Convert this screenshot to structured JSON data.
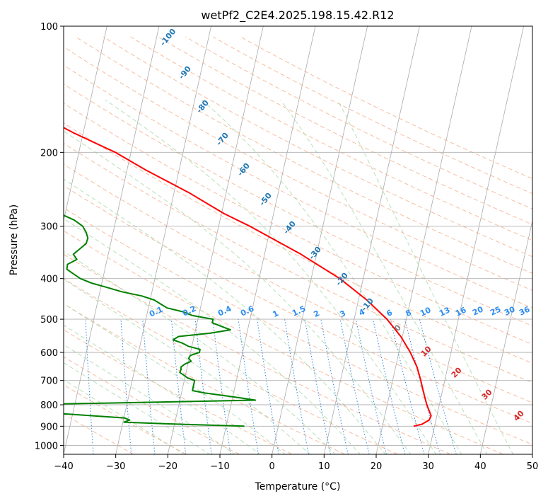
{
  "chart_data": {
    "type": "skew-t",
    "title": "wetPf2_C2E4.2025.198.15.42.R12",
    "xlabel": "Temperature (°C)",
    "ylabel": "Pressure (hPa)",
    "xlim": [
      -40,
      50
    ],
    "ylim": [
      1050,
      100
    ],
    "y_scale": "log",
    "x_ticks": [
      -40,
      -30,
      -20,
      -10,
      0,
      10,
      20,
      30,
      40,
      50
    ],
    "x_tick_labels": [
      "−40",
      "−30",
      "−20",
      "−10",
      "0",
      "10",
      "20",
      "30",
      "40",
      "50"
    ],
    "y_ticks": [
      100,
      200,
      300,
      400,
      500,
      600,
      700,
      800,
      900,
      1000
    ],
    "y_tick_labels": [
      "100",
      "200",
      "300",
      "400",
      "500",
      "600",
      "700",
      "800",
      "900",
      "1000"
    ],
    "grid": true,
    "series": [
      {
        "color": "#ff0000",
        "pressure": [
          900,
          890,
          870,
          850,
          800,
          750,
          700,
          650,
          600,
          550,
          500,
          450,
          400,
          350,
          300,
          280,
          250,
          220,
          200,
          180,
          160,
          140,
          130,
          120,
          110,
          100
        ],
        "temperature": [
          26,
          27.5,
          28.7,
          28.9,
          27.6,
          26.5,
          25.4,
          24.1,
          22.2,
          19.7,
          16.3,
          11.6,
          5.5,
          -3.0,
          -14.0,
          -19.5,
          -27.0,
          -36.5,
          -43.0,
          -51.7,
          -60.5,
          -70.0,
          -71.0,
          -73.0,
          -76.5,
          -80.0
        ]
      },
      {
        "color": "#008000",
        "pressure": [
          900,
          888,
          880,
          870,
          860,
          850,
          840,
          830,
          815,
          805,
          800,
          780,
          770,
          760,
          750,
          740,
          730,
          710,
          700,
          690,
          680,
          670,
          660,
          650,
          640,
          630,
          620,
          610,
          600,
          590,
          580,
          570,
          560,
          550,
          540,
          530,
          520,
          510,
          500,
          490,
          480,
          470,
          460,
          450,
          440,
          430,
          420,
          410,
          400,
          390,
          380,
          370,
          360,
          350,
          340,
          330,
          320,
          310,
          300,
          290,
          280,
          270,
          260,
          250,
          240,
          230,
          220,
          210,
          200,
          195,
          190,
          185,
          180,
          175,
          170,
          160,
          150,
          140,
          130,
          120,
          110,
          100
        ],
        "temperature": [
          -6.5,
          -21.6,
          -29.8,
          -28.8,
          -29.9,
          -36.0,
          -42.0,
          -47.4,
          -53.0,
          -50.5,
          -50.5,
          -5.5,
          -8.5,
          -12.0,
          -15.5,
          -18.0,
          -18.0,
          -18.0,
          -18.0,
          -19.5,
          -20.3,
          -21.2,
          -21.1,
          -21.2,
          -20.6,
          -19.5,
          -20.1,
          -19.9,
          -18.3,
          -18.3,
          -20.7,
          -22.0,
          -23.9,
          -23.0,
          -17.1,
          -13.3,
          -15.2,
          -17.1,
          -17.1,
          -21.2,
          -23.2,
          -26.4,
          -27.8,
          -29.2,
          -31.8,
          -35.8,
          -38.8,
          -42.0,
          -44.3,
          -45.8,
          -47.3,
          -47.4,
          -45.8,
          -46.7,
          -45.7,
          -44.7,
          -44.6,
          -45.2,
          -46.1,
          -48.0,
          -51.0,
          -53.4,
          -56.0,
          -58.7,
          -61.6,
          -64.7,
          -68.0,
          -71.8,
          -74.9,
          -74.5,
          -72.8,
          -69.8,
          -67.8,
          -67.5,
          -66.8,
          -67.8,
          -68.9,
          -72.7,
          -76.1,
          -76.9,
          -78.2,
          -79.0
        ]
      }
    ],
    "dry_adiabat_labels": [
      "-100",
      "-90",
      "-80",
      "-70",
      "-60",
      "-50",
      "-40",
      "-30",
      "-20",
      "-10"
    ],
    "mixing_ratio_labels": [
      "0.1",
      "0.2",
      "0.4",
      "0.6",
      "1",
      "1.5",
      "2",
      "3",
      "4",
      "6",
      "8",
      "10",
      "13",
      "16",
      "20",
      "25",
      "30",
      "36"
    ],
    "moist_adiabat_labels": [
      "0",
      "10",
      "20",
      "30",
      "40"
    ]
  },
  "colors": {
    "temperature_line": "#ff0000",
    "dewpoint_line": "#008000",
    "isotherm": "#aaaaaa",
    "dry_adiabat": "#f4a582",
    "moist_adiabat": "#a6d8a6",
    "mixing_ratio": "#2e86de",
    "dry_adiabat_label": "#1f77b4",
    "mixing_ratio_label": "#2e8ef0",
    "moist_adiabat_label": "#d62728",
    "zero_moist_label": "#808080"
  }
}
